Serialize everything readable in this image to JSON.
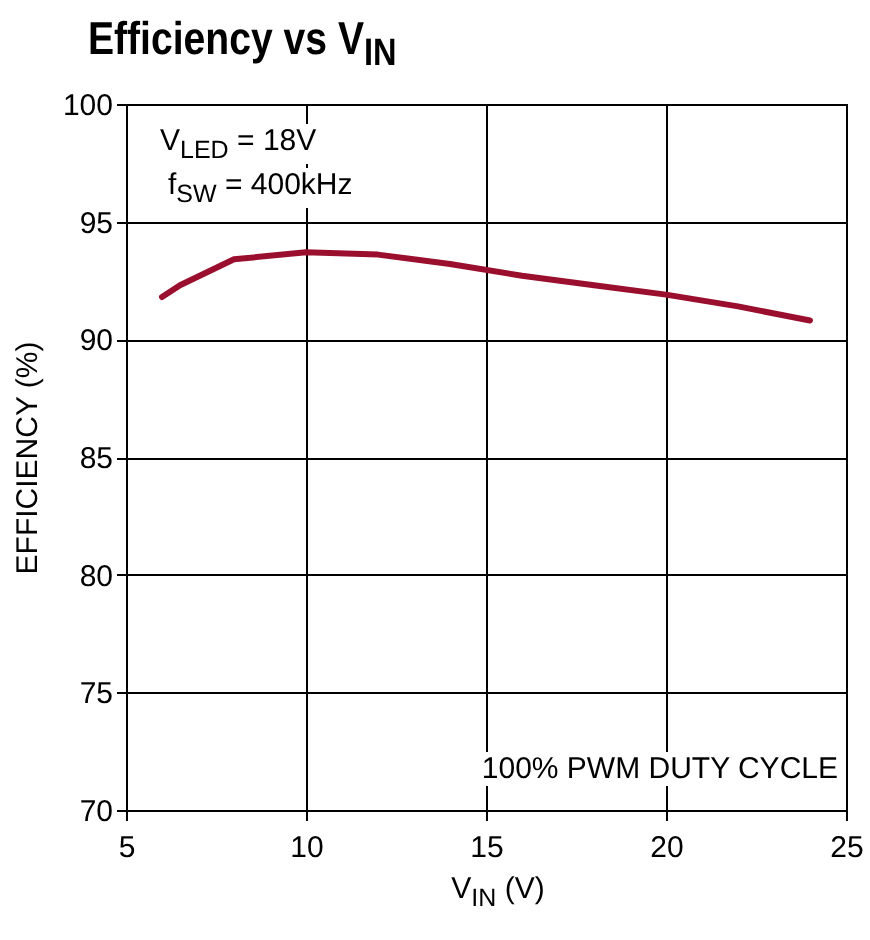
{
  "chart_data": {
    "type": "line",
    "title": "Efficiency vs V$_{IN}$",
    "xlabel": "V$_{IN}$ (V)",
    "ylabel": "EFFICIENCY (%)",
    "annotations": [
      "V$_{LED}$ = 18V",
      "f$_{SW}$ = 400kHz",
      "100% PWM DUTY CYCLE"
    ],
    "x": [
      6,
      6.5,
      8,
      10,
      12,
      14,
      16,
      18,
      20,
      22,
      24
    ],
    "series": [
      {
        "color": "#9b0f2e",
        "values": [
          91.8,
          92.3,
          93.4,
          93.7,
          93.6,
          93.2,
          92.7,
          92.3,
          91.9,
          91.4,
          90.8
        ]
      }
    ],
    "xlim": [
      5,
      25
    ],
    "xticks": [
      5,
      10,
      15,
      20,
      25
    ],
    "ylim": [
      70,
      100
    ],
    "yticks": [
      70,
      75,
      80,
      85,
      90,
      95,
      100
    ],
    "grid": true,
    "marker": "none",
    "line_style": "solid"
  }
}
